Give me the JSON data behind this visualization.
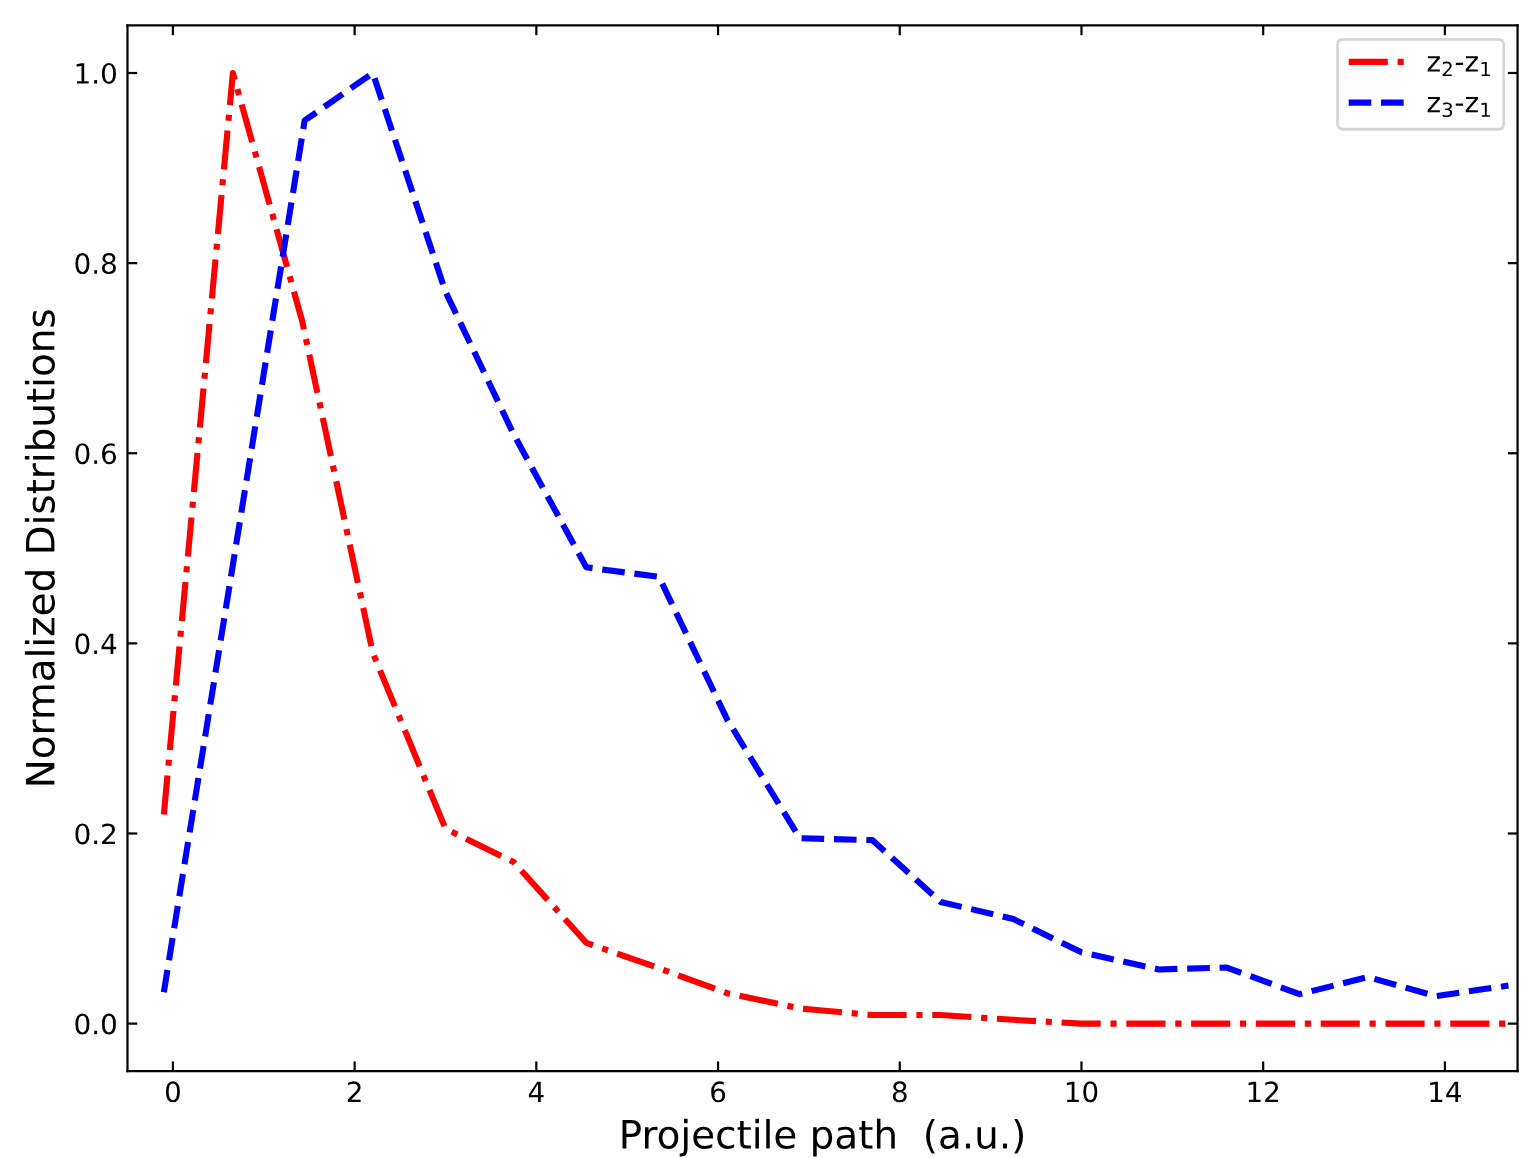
{
  "chart_data": {
    "type": "line",
    "xlabel": "Projectile path  (a.u.)",
    "ylabel": "Normalized Distributions",
    "xlim": [
      -0.5,
      14.8
    ],
    "xticks": [
      0,
      2,
      4,
      6,
      8,
      10,
      12,
      14
    ],
    "ylim": [
      -0.05,
      1.05
    ],
    "yticks": [
      {
        "value": 0,
        "label": "0.0"
      },
      0.2,
      0.4,
      0.6,
      0.8,
      {
        "value": 1,
        "label": "1.0"
      }
    ],
    "grid": false,
    "legend": "top right",
    "marker": "none",
    "series": [
      {
        "name": "z$_{2}$-z$_{1}$",
        "color": "#ff0000",
        "line_style": "dashdot",
        "x": [
          -0.1,
          0.66,
          1.42,
          2.2,
          3.0,
          3.75,
          4.55,
          5.3,
          6.1,
          6.9,
          7.7,
          8.45,
          9.25,
          10.0,
          10.85,
          11.6,
          12.4,
          13.15,
          13.9,
          14.7
        ],
        "values": [
          0.22,
          1.0,
          0.74,
          0.39,
          0.205,
          0.17,
          0.085,
          0.06,
          0.032,
          0.016,
          0.009,
          0.009,
          0.004,
          0.0,
          0.0,
          0.0,
          0.0,
          0.0,
          0.0,
          0.0
        ]
      },
      {
        "name": "z$_{3}$-z$_{1}$",
        "color": "#0000ff",
        "line_style": "dashed",
        "x": [
          -0.1,
          1.45,
          2.2,
          3.0,
          3.75,
          4.55,
          5.35,
          6.1,
          6.9,
          7.7,
          8.45,
          9.25,
          10.0,
          10.85,
          11.6,
          12.4,
          13.15,
          13.9,
          14.7
        ],
        "values": [
          0.033,
          0.95,
          1.0,
          0.77,
          0.62,
          0.48,
          0.47,
          0.32,
          0.195,
          0.193,
          0.128,
          0.11,
          0.075,
          0.057,
          0.059,
          0.031,
          0.049,
          0.029,
          0.04
        ]
      }
    ]
  }
}
